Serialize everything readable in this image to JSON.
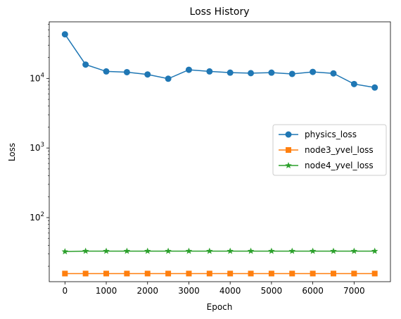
{
  "chart_data": {
    "type": "line",
    "title": "Loss History",
    "xlabel": "Epoch",
    "ylabel": "Loss",
    "yscale": "log",
    "xlim": [
      -380,
      7880
    ],
    "ylim": [
      12,
      65000
    ],
    "xticks": [
      0,
      1000,
      2000,
      3000,
      4000,
      5000,
      6000,
      7000
    ],
    "xtick_labels": [
      "0",
      "1000",
      "2000",
      "3000",
      "4000",
      "5000",
      "6000",
      "7000"
    ],
    "yticks": [
      {
        "base": "10",
        "exp": "2",
        "value": 100
      },
      {
        "base": "10",
        "exp": "3",
        "value": 1000
      },
      {
        "base": "10",
        "exp": "4",
        "value": 10000
      }
    ],
    "grid": false,
    "legend_position": "center-right",
    "x": [
      0,
      500,
      1000,
      1500,
      2000,
      2500,
      3000,
      3500,
      4000,
      4500,
      5000,
      5500,
      6000,
      6500,
      7000,
      7500
    ],
    "series": [
      {
        "name": "physics_loss",
        "color": "#1f77b4",
        "marker": "circle",
        "values": [
          43000,
          15800,
          12600,
          12300,
          11400,
          9900,
          13300,
          12600,
          12100,
          11900,
          12100,
          11600,
          12400,
          11800,
          8300,
          7400
        ]
      },
      {
        "name": "node3_yvel_loss",
        "color": "#ff7f0e",
        "marker": "square",
        "values": [
          15.7,
          15.7,
          15.7,
          15.7,
          15.7,
          15.7,
          15.7,
          15.7,
          15.7,
          15.7,
          15.7,
          15.7,
          15.7,
          15.7,
          15.7,
          15.7
        ]
      },
      {
        "name": "node4_yvel_loss",
        "color": "#2ca02c",
        "marker": "star",
        "values": [
          32.5,
          33.0,
          33.0,
          33.0,
          33.0,
          33.0,
          33.0,
          33.0,
          33.0,
          33.0,
          33.0,
          33.0,
          33.0,
          33.0,
          33.0,
          33.0
        ]
      }
    ]
  }
}
